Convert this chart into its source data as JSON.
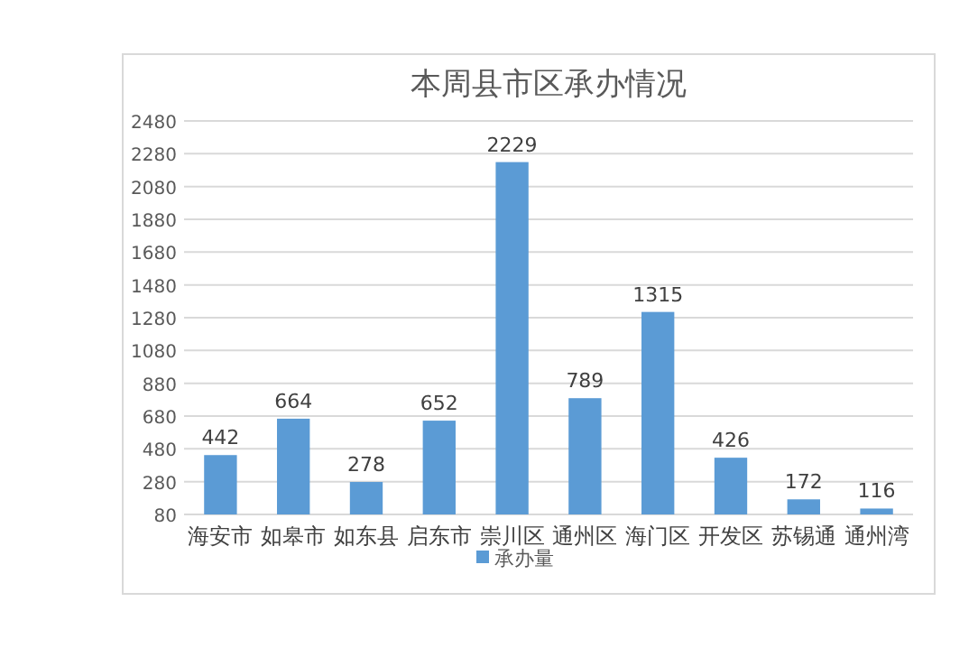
{
  "chart_data": {
    "type": "bar",
    "title": "本周县市区承办情况",
    "categories": [
      "海安市",
      "如皋市",
      "如东县",
      "启东市",
      "崇川区",
      "通州区",
      "海门区",
      "开发区",
      "苏锡通",
      "通州湾"
    ],
    "series": [
      {
        "name": "承办量",
        "color": "#5b9bd5",
        "values": [
          442,
          664,
          278,
          652,
          2229,
          789,
          1315,
          426,
          172,
          116
        ]
      }
    ],
    "ylim": [
      80,
      2480
    ],
    "yticks": [
      80,
      280,
      480,
      680,
      880,
      1080,
      1280,
      1480,
      1680,
      1880,
      2080,
      2280,
      2480
    ],
    "grid": "y",
    "legend": "bottom",
    "data_labels": true
  }
}
